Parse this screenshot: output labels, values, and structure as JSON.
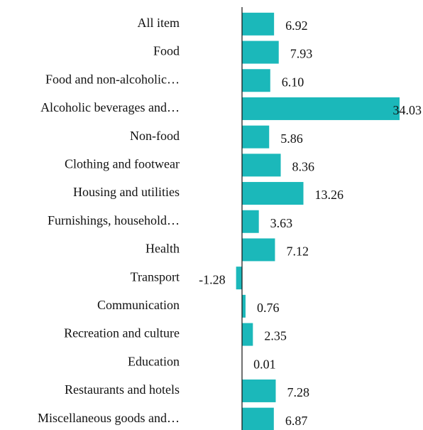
{
  "chart_data": {
    "type": "barh",
    "color": "#1bb8ba",
    "categories": [
      "All item",
      "Food",
      "Food and non-alcoholic…",
      "Alcoholic beverages and…",
      "Non-food",
      "Clothing and footwear",
      "Housing and utilities",
      "Furnishings, household…",
      "Health",
      "Transport",
      "Communication",
      "Recreation and culture",
      "Education",
      "Restaurants and hotels",
      "Miscellaneous goods and…"
    ],
    "values": [
      6.92,
      7.93,
      6.1,
      34.03,
      5.86,
      8.36,
      13.26,
      3.63,
      7.12,
      -1.28,
      0.76,
      2.35,
      0.01,
      7.28,
      6.87
    ],
    "value_labels": [
      "6.92",
      "7.93",
      "6.10",
      "34.03",
      "5.86",
      "8.36",
      "13.26",
      "3.63",
      "7.12",
      "-1.28",
      "0.76",
      "2.35",
      "0.01",
      "7.28",
      "6.87"
    ]
  }
}
